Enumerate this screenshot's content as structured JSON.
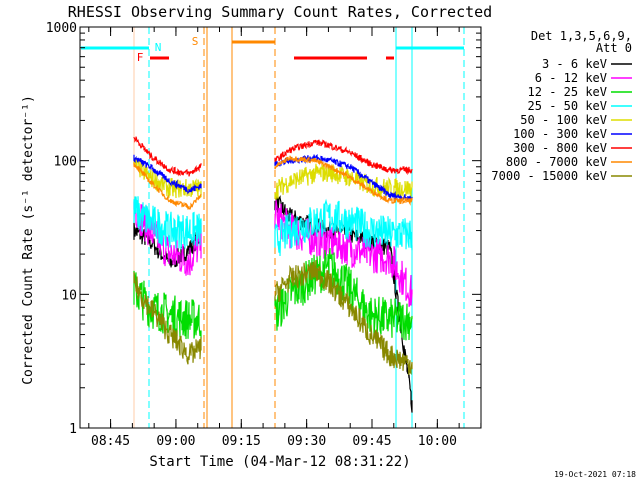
{
  "chart_data": {
    "type": "line",
    "title": "RHESSI Observing Summary Count Rates, Corrected",
    "xlabel": "Start Time (04-Mar-12 08:31:22)",
    "ylabel": "Corrected Count Rate (s⁻¹ detector⁻¹)",
    "yscale": "log",
    "ylim": [
      1,
      1000
    ],
    "xlim_minutes": [
      8.633,
      10.167
    ],
    "y_ticks": [
      {
        "v": 1,
        "label": "1"
      },
      {
        "v": 10,
        "label": "10"
      },
      {
        "v": 100,
        "label": "100"
      },
      {
        "v": 1000,
        "label": "1000"
      }
    ],
    "x_ticks": [
      {
        "v": 8.75,
        "label": "08:45"
      },
      {
        "v": 9.0,
        "label": "09:00"
      },
      {
        "v": 9.25,
        "label": "09:15"
      },
      {
        "v": 9.5,
        "label": "09:30"
      },
      {
        "v": 9.75,
        "label": "09:45"
      },
      {
        "v": 10.0,
        "label": "10:00"
      }
    ],
    "legend_header": [
      "Det 1,3,5,6,9,",
      "Att 0"
    ],
    "series": [
      {
        "name": "3 - 6 keV",
        "color": "#000000",
        "seg1": [
          30,
          25,
          17,
          22,
          28
        ],
        "seg2": [
          50,
          38,
          32,
          30,
          28,
          25,
          22,
          1.5
        ]
      },
      {
        "name": "6 - 12 keV",
        "color": "#ff00ff",
        "seg1": [
          45,
          30,
          20,
          18,
          25
        ],
        "seg2": [
          40,
          30,
          26,
          25,
          22,
          20,
          19,
          10
        ]
      },
      {
        "name": "12 - 25 keV",
        "color": "#00dd00",
        "seg1": [
          11,
          8,
          7,
          6.5,
          6.5
        ],
        "seg2": [
          7,
          10,
          14,
          16,
          11,
          7,
          6.5,
          6.5
        ]
      },
      {
        "name": "25 - 50 keV",
        "color": "#00ffff",
        "seg1": [
          42,
          35,
          30,
          30,
          30
        ],
        "seg2": [
          25,
          30,
          35,
          38,
          35,
          30,
          28,
          28
        ]
      },
      {
        "name": "50 - 100 keV",
        "color": "#dddd00",
        "seg1": [
          95,
          75,
          62,
          62,
          62
        ],
        "seg2": [
          60,
          70,
          80,
          82,
          75,
          65,
          62,
          62
        ]
      },
      {
        "name": "100 - 300 keV",
        "color": "#0000ff",
        "seg1": [
          105,
          90,
          70,
          60,
          65
        ],
        "seg2": [
          95,
          100,
          105,
          100,
          90,
          70,
          55,
          52
        ]
      },
      {
        "name": "300 - 800 keV",
        "color": "#ff0000",
        "seg1": [
          150,
          110,
          85,
          80,
          92
        ],
        "seg2": [
          100,
          120,
          138,
          130,
          115,
          95,
          85,
          85
        ]
      },
      {
        "name": "800 - 7000 keV",
        "color": "#ff8800",
        "seg1": [
          95,
          70,
          50,
          45,
          55
        ],
        "seg2": [
          90,
          105,
          100,
          90,
          75,
          60,
          50,
          50
        ]
      },
      {
        "name": "7000 - 15000 keV",
        "color": "#888800",
        "seg1": [
          12,
          8,
          5,
          3.5,
          4
        ],
        "seg2": [
          10,
          13,
          15,
          12,
          8,
          5,
          3.5,
          3
        ]
      }
    ],
    "flags": [
      {
        "label": "F",
        "color": "#ff0000"
      },
      {
        "label": "N",
        "color": "#00ffff"
      },
      {
        "label": "S",
        "color": "#ff8800"
      }
    ]
  },
  "footer": {
    "timestamp": "19-Oct-2021 07:18"
  }
}
